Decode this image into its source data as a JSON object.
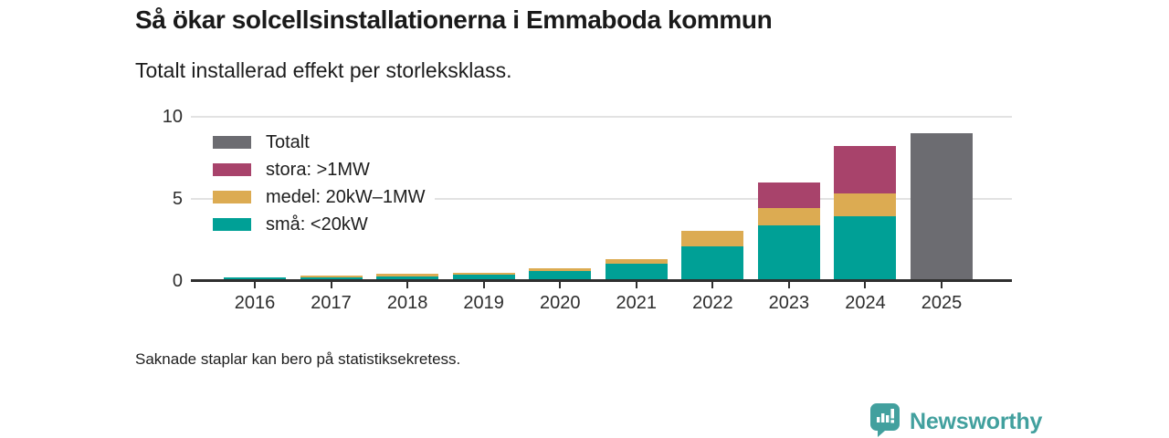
{
  "header": {
    "title": "Så ökar solcellsinstallationerna i Emmaboda kommun",
    "subtitle": "Totalt installerad effekt per storleksklass."
  },
  "footer": {
    "note": "Saknade staplar kan bero på statistiksekretess."
  },
  "branding": {
    "name": "Newsworthy",
    "logo_icon": "newsworthy-speech-bubble-barchart-icon"
  },
  "colors": {
    "small": "#00a096",
    "medium": "#dcab52",
    "large": "#a8436b",
    "total": "#6c6c71",
    "axis": "#2f2f2f",
    "grid": "#e2e2e2",
    "text": "#1a1a1a",
    "brand": "#42a09e"
  },
  "chart_data": {
    "type": "bar",
    "stacked": true,
    "title": "Så ökar solcellsinstallationerna i Emmaboda kommun",
    "subtitle": "Totalt installerad effekt per storleksklass.",
    "xlabel": "",
    "ylabel": "",
    "ylim": [
      0,
      10
    ],
    "yticks": [
      0,
      5,
      10
    ],
    "grid": true,
    "legend_position": "upper-left-inside",
    "categories": [
      "2016",
      "2017",
      "2018",
      "2019",
      "2020",
      "2021",
      "2022",
      "2023",
      "2024",
      "2025"
    ],
    "series": [
      {
        "name": "små: <20kW",
        "color_key": "small",
        "values": [
          0.2,
          0.2,
          0.27,
          0.37,
          0.6,
          1.05,
          2.1,
          3.4,
          3.95,
          0
        ]
      },
      {
        "name": "medel: 20kW–1MW",
        "color_key": "medium",
        "values": [
          0,
          0.12,
          0.15,
          0.13,
          0.17,
          0.3,
          0.95,
          1.05,
          1.4,
          0
        ]
      },
      {
        "name": "stora: >1MW",
        "color_key": "large",
        "values": [
          0,
          0,
          0,
          0,
          0,
          0,
          0,
          1.55,
          2.9,
          0
        ]
      },
      {
        "name": "Totalt",
        "color_key": "total",
        "values": [
          0,
          0,
          0,
          0,
          0,
          0,
          0,
          0,
          0,
          9.0
        ]
      }
    ],
    "legend": [
      {
        "label": "Totalt",
        "color_key": "total"
      },
      {
        "label": "stora: >1MW",
        "color_key": "large"
      },
      {
        "label": "medel: 20kW–1MW",
        "color_key": "medium"
      },
      {
        "label": "små: <20kW",
        "color_key": "small"
      }
    ]
  }
}
